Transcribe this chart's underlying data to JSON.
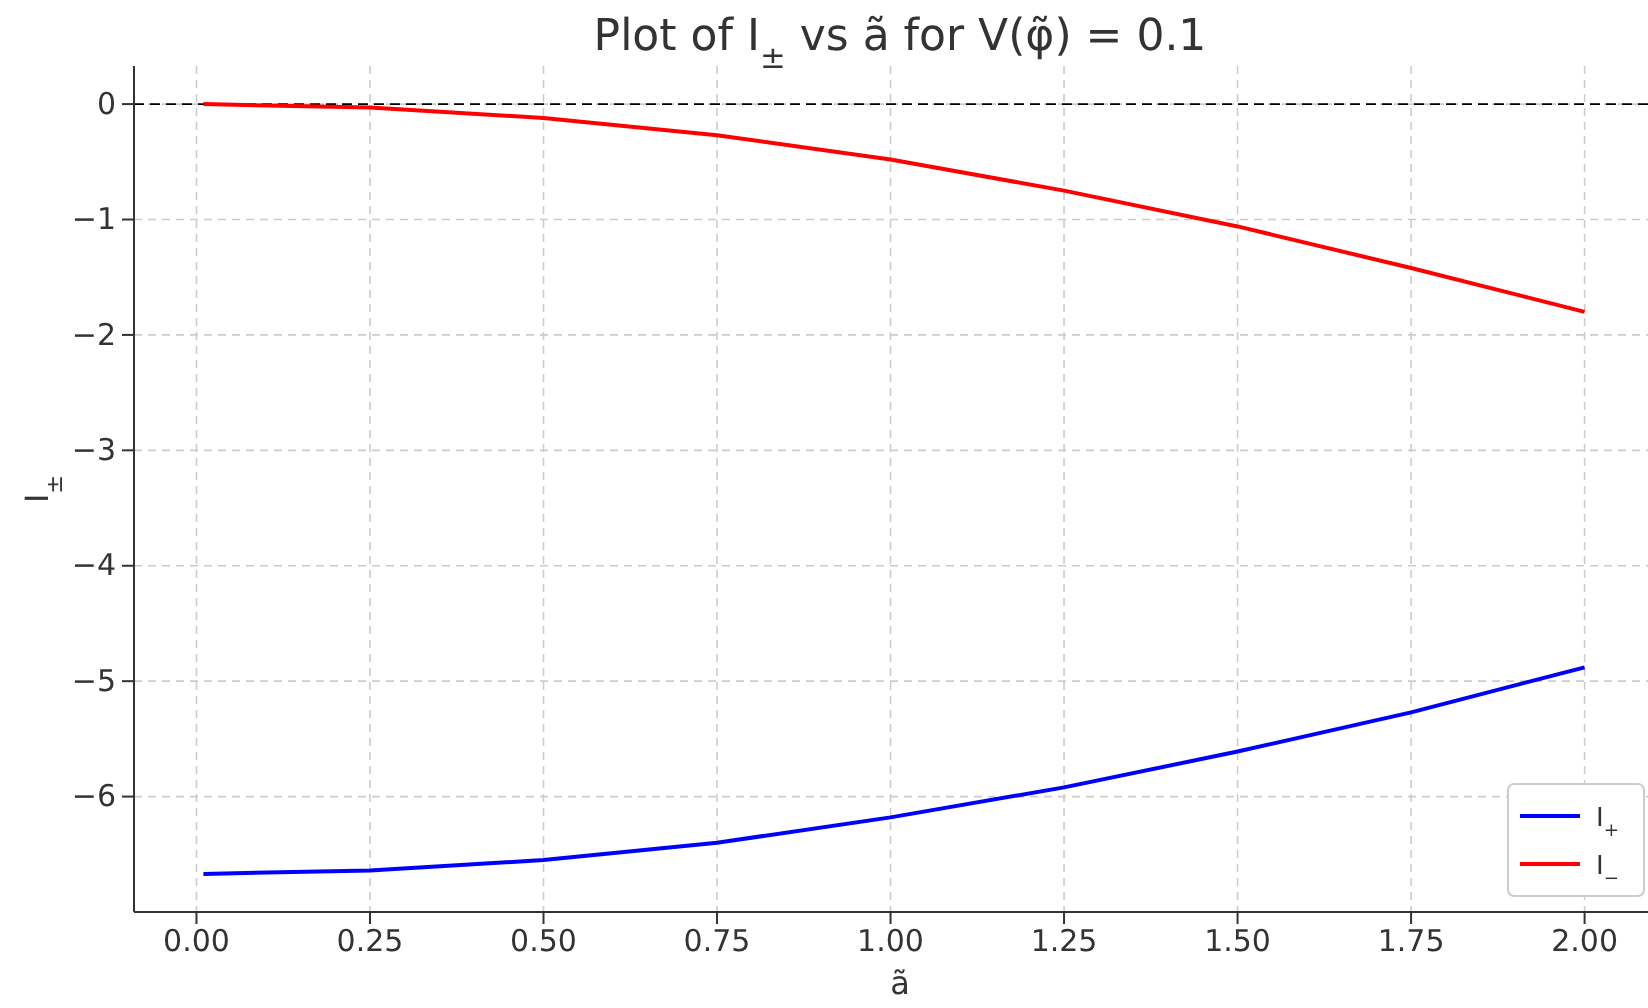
{
  "chart_data": {
    "type": "line",
    "title": "Plot of I$_{±}$ vs ã for V(φ̃) = 0.1",
    "xlabel": "ã",
    "ylabel": "I$_{±}$",
    "x": [
      0.01,
      0.25,
      0.5,
      0.75,
      1.0,
      1.25,
      1.5,
      1.75,
      2.0
    ],
    "series": [
      {
        "name": "I$_{+}$",
        "color": "#0000ff",
        "values": [
          -6.67,
          -6.64,
          -6.55,
          -6.4,
          -6.18,
          -5.92,
          -5.61,
          -5.27,
          -4.88
        ]
      },
      {
        "name": "I$_{−}$",
        "color": "#ff0000",
        "values": [
          0,
          -0.03,
          -0.12,
          -0.27,
          -0.48,
          -0.75,
          -1.06,
          -1.42,
          -1.8
        ]
      }
    ],
    "xlim": [
      -0.09,
      2.1
    ],
    "ylim": [
      -7.0,
      0.33
    ],
    "xticks": [
      {
        "value": 0,
        "label": "0.00"
      },
      {
        "value": 0.25,
        "label": "0.25"
      },
      {
        "value": 0.5,
        "label": "0.50"
      },
      {
        "value": 0.75,
        "label": "0.75"
      },
      {
        "value": 1,
        "label": "1.00"
      },
      {
        "value": 1.25,
        "label": "1.25"
      },
      {
        "value": 1.5,
        "label": "1.50"
      },
      {
        "value": 1.75,
        "label": "1.75"
      },
      {
        "value": 2,
        "label": "2.00"
      }
    ],
    "yticks": [
      {
        "value": -6,
        "label": "−6"
      },
      {
        "value": -5,
        "label": "−5"
      },
      {
        "value": -4,
        "label": "−4"
      },
      {
        "value": -3,
        "label": "−3"
      },
      {
        "value": -2,
        "label": "−2"
      },
      {
        "value": -1,
        "label": "−1"
      },
      0
    ],
    "ref_lines": [
      {
        "axis": "y",
        "value": 0,
        "color": "#000000",
        "line_style": "dashed"
      }
    ],
    "grid": true,
    "legend": "bottom right",
    "line_style": "solid",
    "marker": "none"
  }
}
